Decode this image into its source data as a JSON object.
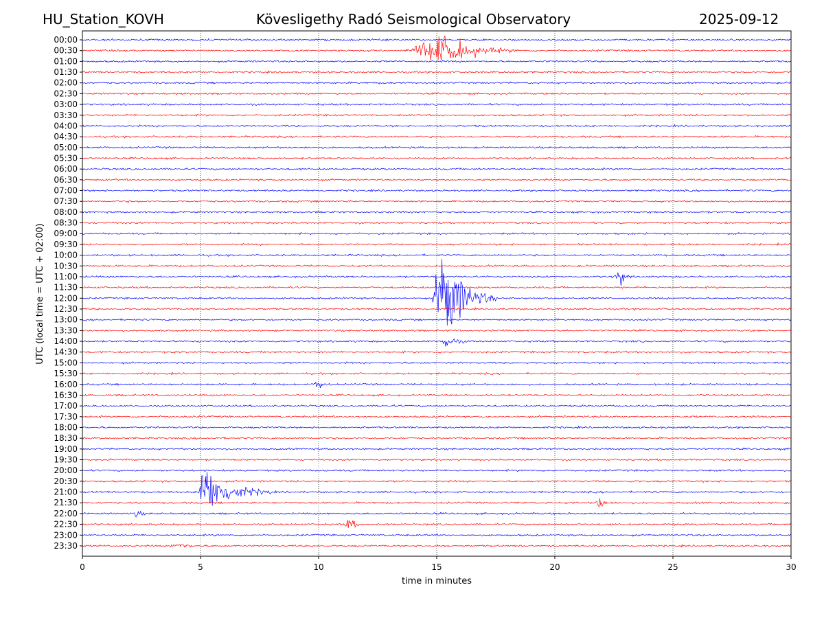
{
  "header": {
    "station": "HU_Station_KOVH",
    "title": "Kövesligethy Radó Seismological Observatory",
    "date": "2025-09-12"
  },
  "chart_data": {
    "type": "line",
    "xlabel": "time in minutes",
    "ylabel": "UTC (local time = UTC + 02:00)",
    "xlim": [
      0,
      30
    ],
    "x_ticks": [
      0,
      5,
      10,
      15,
      20,
      25,
      30
    ],
    "x_tick_labels": [
      "0",
      "5",
      "10",
      "15",
      "20",
      "25",
      "30"
    ],
    "grid": "vertical dotted lines at x ticks",
    "row_labels": [
      "00:00",
      "00:30",
      "01:00",
      "01:30",
      "02:00",
      "02:30",
      "03:00",
      "03:30",
      "04:00",
      "04:30",
      "05:00",
      "05:30",
      "06:00",
      "06:30",
      "07:00",
      "07:30",
      "08:00",
      "08:30",
      "09:00",
      "09:30",
      "10:00",
      "10:30",
      "11:00",
      "11:30",
      "12:00",
      "12:30",
      "13:00",
      "13:30",
      "14:00",
      "14:30",
      "15:00",
      "15:30",
      "16:00",
      "16:30",
      "17:00",
      "17:30",
      "18:00",
      "18:30",
      "19:00",
      "19:30",
      "20:00",
      "20:30",
      "21:00",
      "21:30",
      "22:00",
      "22:30",
      "23:00",
      "23:30"
    ],
    "trace_colors": [
      "#0000ff",
      "#ff0000"
    ],
    "color_order": "alternating, starting with blue at 00:00",
    "events": [
      {
        "row": "00:30",
        "start_min": 13.6,
        "peak_min": 15.4,
        "end_min": 18.5,
        "amplitude": 0.75
      },
      {
        "row": "11:00",
        "start_min": 22.4,
        "peak_min": 22.8,
        "end_min": 23.3,
        "amplitude": 0.35
      },
      {
        "row": "12:00",
        "start_min": 14.8,
        "peak_min": 15.3,
        "end_min": 17.5,
        "amplitude": 2.6
      },
      {
        "row": "14:00",
        "start_min": 15.1,
        "peak_min": 15.4,
        "end_min": 16.3,
        "amplitude": 0.35
      },
      {
        "row": "16:00",
        "start_min": 9.8,
        "peak_min": 10.0,
        "end_min": 10.5,
        "amplitude": 0.35
      },
      {
        "row": "21:00",
        "start_min": 4.9,
        "peak_min": 5.05,
        "end_min": 8.0,
        "amplitude": 1.5
      },
      {
        "row": "21:30",
        "start_min": 21.7,
        "peak_min": 21.9,
        "end_min": 22.5,
        "amplitude": 0.3
      },
      {
        "row": "22:00",
        "start_min": 2.2,
        "peak_min": 2.3,
        "end_min": 2.7,
        "amplitude": 0.25
      },
      {
        "row": "22:30",
        "start_min": 11.1,
        "peak_min": 11.3,
        "end_min": 11.9,
        "amplitude": 0.35
      },
      {
        "row": "23:30",
        "start_min": 3.6,
        "peak_min": 4.1,
        "end_min": 5.0,
        "amplitude": 0.15
      }
    ]
  }
}
